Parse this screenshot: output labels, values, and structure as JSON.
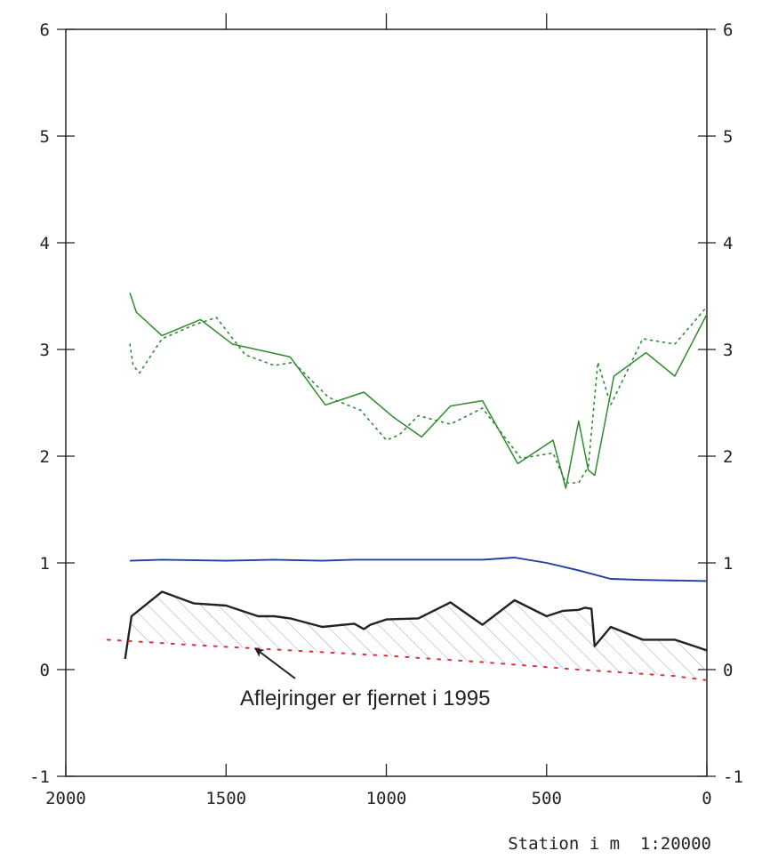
{
  "chart_data": {
    "type": "line",
    "xlabel": "Station i m  1:20000",
    "x_reversed": true,
    "xlim": [
      2000,
      0
    ],
    "ylim": [
      -1,
      6
    ],
    "x_ticks": [
      2000,
      1500,
      1000,
      500,
      0
    ],
    "x_tick_labels": [
      "2000",
      "1500",
      "1000",
      "500",
      "0"
    ],
    "y_ticks": [
      -1,
      0,
      1,
      2,
      3,
      4,
      5,
      6
    ],
    "y_tick_labels": [
      "-1",
      "0",
      "1",
      "2",
      "3",
      "4",
      "5",
      "6"
    ],
    "top_ticks": [
      1500,
      1000,
      500
    ],
    "right_axis_labels": true,
    "grid": false,
    "annotation": {
      "text": "Aflejringer er fjernet i 1995",
      "arrow_to": [
        1410,
        0.2
      ]
    },
    "colors": {
      "green": "#2e8b2e",
      "blue": "#1f3fa0",
      "black": "#222222",
      "red": "#e0303a",
      "hatch": "#6f86c8"
    },
    "series": [
      {
        "style": "solid",
        "color_key": "green",
        "x": [
          1800,
          1780,
          1700,
          1580,
          1480,
          1300,
          1190,
          1070,
          980,
          890,
          800,
          700,
          590,
          480,
          440,
          400,
          370,
          350,
          290,
          190,
          100,
          0
        ],
        "y": [
          3.53,
          3.35,
          3.13,
          3.28,
          3.05,
          2.93,
          2.48,
          2.6,
          2.37,
          2.18,
          2.47,
          2.52,
          1.93,
          2.15,
          1.7,
          2.33,
          1.87,
          1.82,
          2.75,
          2.97,
          2.75,
          3.33
        ]
      },
      {
        "style": "dotted",
        "color_key": "green",
        "x": [
          1800,
          1790,
          1770,
          1700,
          1600,
          1530,
          1440,
          1350,
          1290,
          1180,
          1080,
          1000,
          960,
          900,
          800,
          700,
          580,
          480,
          440,
          400,
          370,
          340,
          300,
          200,
          100,
          0
        ],
        "y": [
          3.05,
          2.85,
          2.78,
          3.1,
          3.23,
          3.3,
          2.95,
          2.85,
          2.88,
          2.55,
          2.43,
          2.15,
          2.2,
          2.38,
          2.3,
          2.45,
          1.98,
          2.03,
          1.75,
          1.75,
          1.9,
          2.88,
          2.48,
          3.1,
          3.05,
          3.4
        ]
      },
      {
        "style": "solid",
        "color_key": "blue",
        "x": [
          1800,
          1700,
          1500,
          1350,
          1200,
          1100,
          1000,
          800,
          700,
          600,
          500,
          400,
          300,
          200,
          0
        ],
        "y": [
          1.02,
          1.03,
          1.02,
          1.03,
          1.02,
          1.03,
          1.03,
          1.03,
          1.03,
          1.05,
          1.0,
          0.93,
          0.85,
          0.84,
          0.83
        ]
      },
      {
        "style": "solid",
        "color_key": "black",
        "x": [
          1815,
          1795,
          1700,
          1600,
          1500,
          1450,
          1400,
          1350,
          1300,
          1200,
          1100,
          1070,
          1050,
          1000,
          900,
          800,
          700,
          600,
          500,
          450,
          400,
          380,
          360,
          350,
          300,
          200,
          100,
          0
        ],
        "y": [
          0.1,
          0.5,
          0.73,
          0.62,
          0.6,
          0.55,
          0.5,
          0.5,
          0.48,
          0.4,
          0.43,
          0.38,
          0.42,
          0.47,
          0.48,
          0.63,
          0.42,
          0.65,
          0.5,
          0.55,
          0.56,
          0.58,
          0.57,
          0.22,
          0.4,
          0.28,
          0.28,
          0.18
        ]
      },
      {
        "style": "dotted",
        "color_key": "red",
        "x": [
          1870,
          1600,
          1300,
          1000,
          700,
          400,
          100,
          0
        ],
        "y": [
          0.28,
          0.23,
          0.18,
          0.13,
          0.07,
          0.0,
          -0.06,
          -0.1
        ]
      }
    ]
  }
}
